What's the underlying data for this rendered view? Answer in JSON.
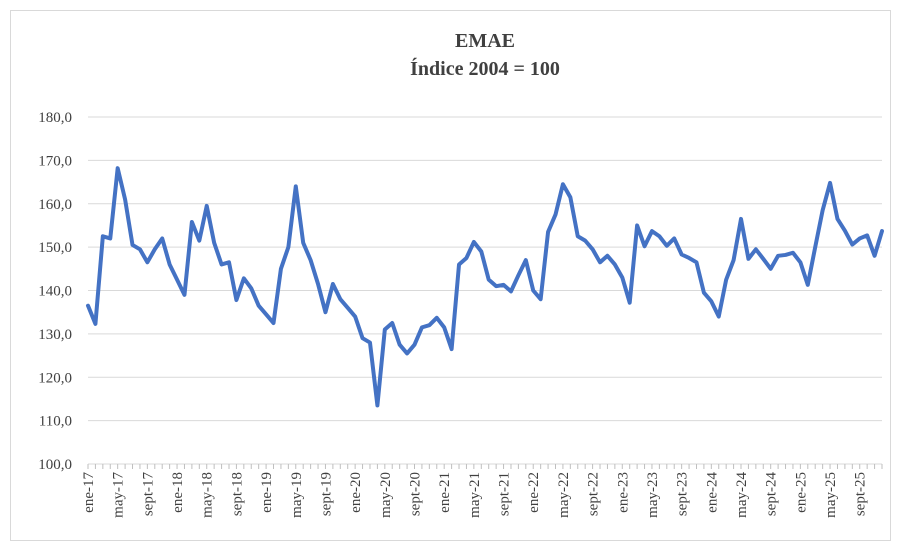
{
  "chart_data": {
    "type": "line",
    "title": "EMAE",
    "subtitle": "Índice 2004 = 100",
    "categories": [
      "ene-17",
      null,
      null,
      null,
      "may-17",
      null,
      null,
      null,
      "sept-17",
      null,
      null,
      null,
      "ene-18",
      null,
      null,
      null,
      "may-18",
      null,
      null,
      null,
      "sept-18",
      null,
      null,
      null,
      "ene-19",
      null,
      null,
      null,
      "may-19",
      null,
      null,
      null,
      "sept-19",
      null,
      null,
      null,
      "ene-20",
      null,
      null,
      null,
      "may-20",
      null,
      null,
      null,
      "sept-20",
      null,
      null,
      null,
      "ene-21",
      null,
      null,
      null,
      "may-21",
      null,
      null,
      null,
      "sept-21",
      null,
      null,
      null,
      "ene-22",
      null,
      null,
      null,
      "may-22",
      null,
      null,
      null,
      "sept-22",
      null,
      null,
      null,
      "ene-23",
      null,
      null,
      null,
      "may-23",
      null,
      null,
      null,
      "sept-23",
      null,
      null,
      null,
      "ene-24",
      null,
      null,
      null,
      "may-24",
      null,
      null,
      null,
      "sept-24",
      null,
      null,
      null,
      "ene-25",
      null,
      null,
      null,
      "may-25",
      null,
      null,
      null,
      "sept-25",
      null,
      null,
      null
    ],
    "series": [
      {
        "name": "EMAE",
        "color": "#4472c4",
        "values": [
          136.5,
          132.3,
          152.5,
          152,
          168.2,
          161,
          150.5,
          149.5,
          146.5,
          149.5,
          152,
          146,
          142.5,
          139,
          155.8,
          151.5,
          159.5,
          151,
          146,
          146.5,
          137.8,
          142.8,
          140.5,
          136.5,
          134.5,
          132.5,
          145,
          150,
          164,
          151,
          147,
          141.5,
          135,
          141.5,
          138,
          136,
          134,
          129,
          128,
          113.5,
          131,
          132.5,
          127.5,
          125.5,
          127.5,
          131.5,
          132,
          133.7,
          131.5,
          126.5,
          146,
          147.5,
          151.2,
          149,
          142.5,
          141,
          141.3,
          139.8,
          143.5,
          147,
          140,
          138,
          153.5,
          157.5,
          164.5,
          161.5,
          152.5,
          151.5,
          149.5,
          146.5,
          148,
          146,
          143,
          137.2,
          155,
          150.2,
          153.7,
          152.5,
          150.3,
          152,
          148.3,
          147.5,
          146.5,
          139.5,
          137.5,
          134,
          142.5,
          147,
          156.5,
          147.3,
          149.5,
          147.3,
          145,
          148,
          148.2,
          148.7,
          146.5,
          141.3,
          150,
          158.5,
          164.8,
          156.5,
          153.8,
          150.6,
          152,
          152.7,
          148,
          153.7
        ]
      }
    ],
    "ylim": [
      100,
      180
    ],
    "yticks": [
      {
        "value": 100,
        "label": "100,0"
      },
      {
        "value": 110,
        "label": "110,0"
      },
      {
        "value": 120,
        "label": "120,0"
      },
      {
        "value": 130,
        "label": "130,0"
      },
      {
        "value": 140,
        "label": "140,0"
      },
      {
        "value": 150,
        "label": "150,0"
      },
      {
        "value": 160,
        "label": "160,0"
      },
      {
        "value": 170,
        "label": "170,0"
      },
      {
        "value": 180,
        "label": "180,0"
      }
    ],
    "grid": true
  }
}
